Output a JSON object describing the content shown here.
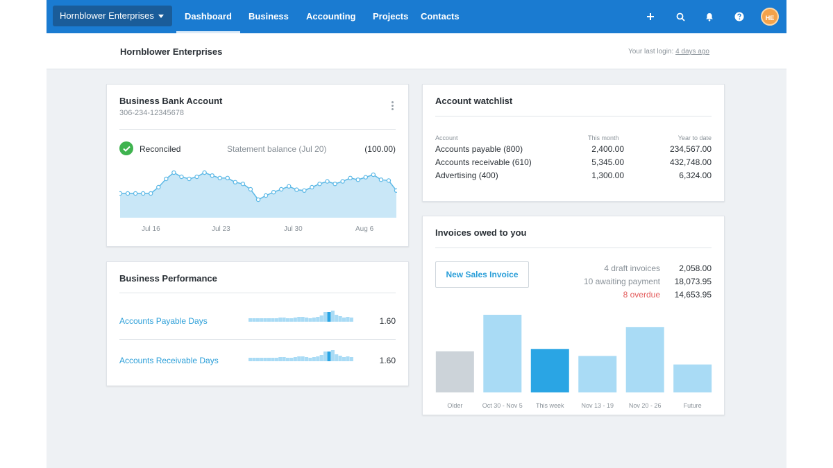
{
  "nav": {
    "org_switcher": "Hornblower Enterprises",
    "links": [
      "Dashboard",
      "Business",
      "Accounting",
      "Projects",
      "Contacts"
    ],
    "avatar_initials": "HE",
    "icons": [
      "plus-icon",
      "search-icon",
      "bell-icon",
      "help-icon"
    ]
  },
  "subheader": {
    "org_name": "Hornblower Enterprises",
    "last_login_prefix": "Your last login:",
    "last_login_link": "4 days ago"
  },
  "bank": {
    "title": "Business Bank Account",
    "account_number": "306-234-12345678",
    "status": "Reconciled",
    "statement_label": "Statement balance (Jul 20)",
    "statement_value": "(100.00)",
    "dates": [
      "Jul 16",
      "Jul 23",
      "Jul 30",
      "Aug 6"
    ],
    "trend": [
      0.35,
      0.35,
      0.35,
      0.35,
      0.35,
      0.5,
      0.7,
      0.85,
      0.75,
      0.7,
      0.75,
      0.85,
      0.78,
      0.72,
      0.72,
      0.62,
      0.58,
      0.45,
      0.2,
      0.3,
      0.38,
      0.45,
      0.52,
      0.44,
      0.42,
      0.5,
      0.58,
      0.64,
      0.58,
      0.64,
      0.72,
      0.68,
      0.74,
      0.8,
      0.68,
      0.66,
      0.42
    ]
  },
  "performance": {
    "title": "Business Performance",
    "rows": [
      {
        "label": "Accounts Payable Days",
        "value": "1.60"
      },
      {
        "label": "Accounts Receivable Days",
        "value": "1.60"
      }
    ]
  },
  "watchlist": {
    "title": "Account watchlist",
    "headers": [
      "Account",
      "This month",
      "Year to date"
    ],
    "rows": [
      {
        "account": "Accounts payable (800)",
        "month": "2,400.00",
        "ytd": "234,567.00"
      },
      {
        "account": "Accounts receivable (610)",
        "month": "5,345.00",
        "ytd": "432,748.00"
      },
      {
        "account": "Advertising (400)",
        "month": "1,300.00",
        "ytd": "6,324.00"
      }
    ]
  },
  "invoices": {
    "title": "Invoices owed to you",
    "button": "New Sales Invoice",
    "summary": [
      {
        "label": "4 draft invoices",
        "value": "2,058.00"
      },
      {
        "label": "10 awaiting payment",
        "value": "18,073.95"
      },
      {
        "label": "8 overdue",
        "value": "14,653.95"
      }
    ],
    "bars": [
      {
        "label": "Older",
        "value": 0.53,
        "color": "#ccd3d9"
      },
      {
        "label": "Oct 30 - Nov 5",
        "value": 1.0,
        "color": "#a9dbf5"
      },
      {
        "label": "This week",
        "value": 0.56,
        "color": "#2aa5e4"
      },
      {
        "label": "Nov 13 - 19",
        "value": 0.47,
        "color": "#a9dbf5"
      },
      {
        "label": "Nov 20 - 26",
        "value": 0.84,
        "color": "#a9dbf5"
      },
      {
        "label": "Future",
        "value": 0.36,
        "color": "#a9dbf5"
      }
    ]
  },
  "colors": {
    "nav_bg": "#1a7bd1",
    "accent": "#2a9ed8",
    "overdue": "#e35b5b",
    "reconciled": "#3fb34f"
  }
}
